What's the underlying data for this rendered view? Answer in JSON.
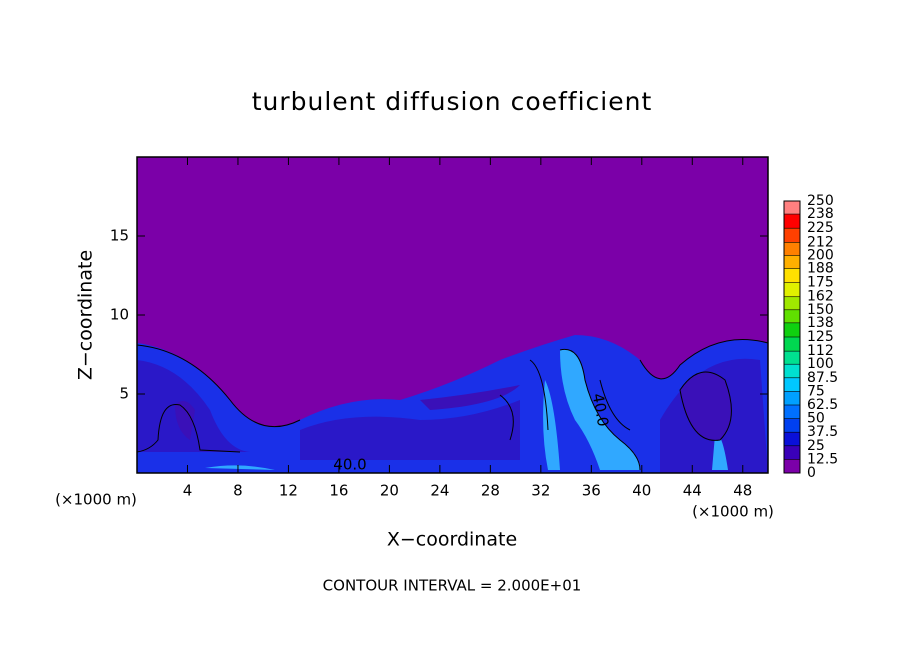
{
  "chart_data": {
    "type": "contour",
    "title": "turbulent diffusion coefficient",
    "x_label": "X−coordinate",
    "y_label": "Z−coordinate",
    "x_unit_labels": [
      "(×1000 m)",
      "(×1000 m)"
    ],
    "footer": "CONTOUR INTERVAL = 2.000E+01",
    "contour_labels": [
      "40.0",
      "40.0"
    ],
    "xlim": [
      0,
      50
    ],
    "xticks": [
      4,
      8,
      12,
      16,
      20,
      24,
      28,
      32,
      36,
      40,
      44,
      48
    ],
    "ylim": [
      0,
      20
    ],
    "yticks": [
      5,
      10,
      15
    ],
    "colorbar": {
      "lim": [
        0,
        250
      ],
      "ticks": [
        0,
        12.5,
        25,
        37.5,
        50,
        62.5,
        75,
        87.5,
        100,
        112,
        125,
        138,
        150,
        162,
        175,
        188,
        200,
        212,
        225,
        238,
        250
      ],
      "colors": [
        "#7b00a8",
        "#3a00b8",
        "#0a10d8",
        "#0040f0",
        "#0070ff",
        "#00a0ff",
        "#00c8ff",
        "#00e0d0",
        "#00e090",
        "#00d850",
        "#10d010",
        "#60e000",
        "#a0e800",
        "#e0f000",
        "#ffe000",
        "#ffb000",
        "#ff8000",
        "#ff4000",
        "#ff0000",
        "#ff8080"
      ]
    }
  }
}
